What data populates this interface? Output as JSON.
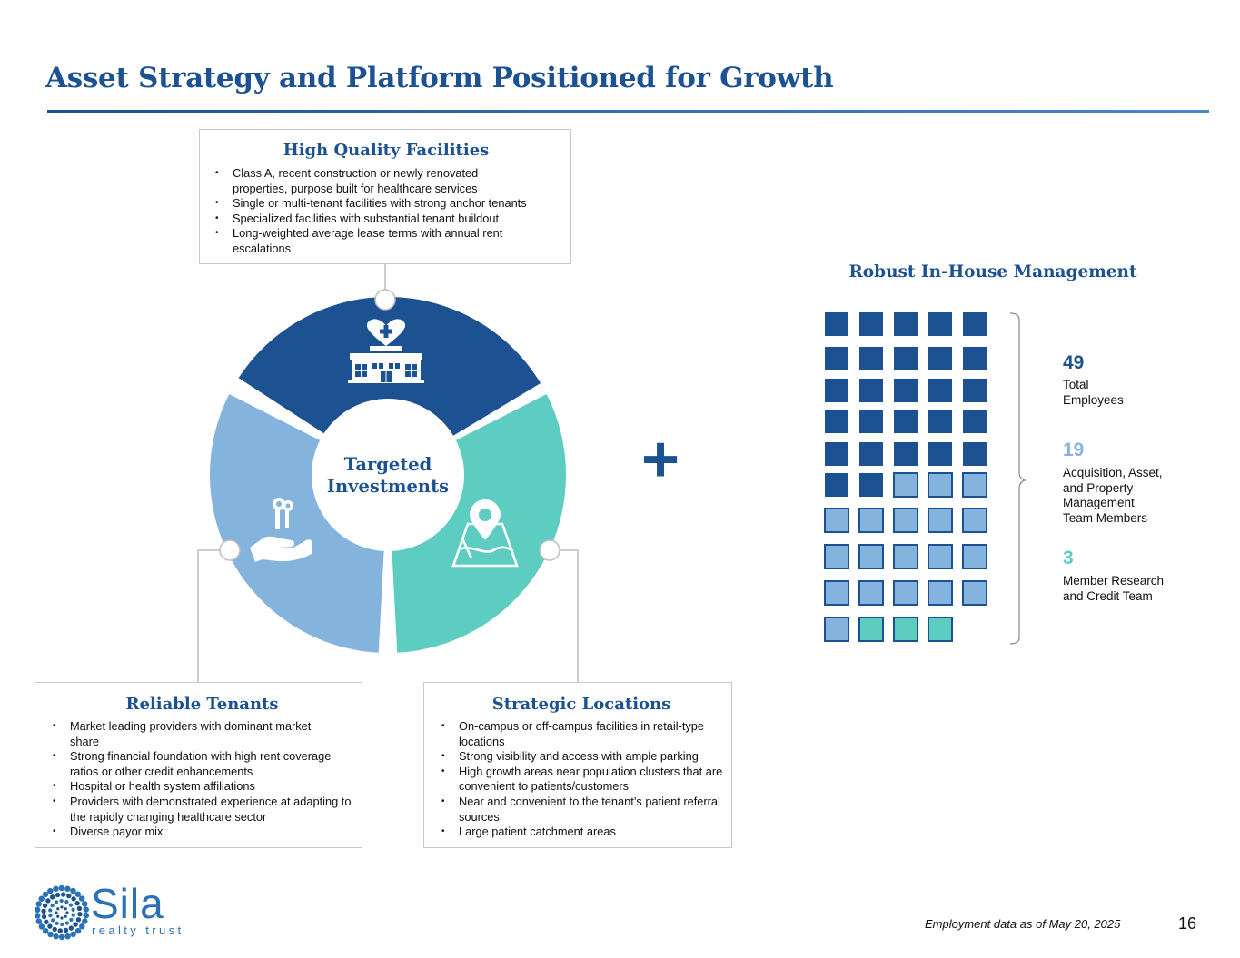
{
  "page": {
    "title": "Asset Strategy and Platform Positioned for Growth",
    "footnote": "Employment data as of May 20, 2025",
    "page_number": "16"
  },
  "logo": {
    "word": "Sila",
    "sub": "realty trust"
  },
  "colors": {
    "navy": "#1d5292",
    "light_blue": "#84b4de",
    "teal": "#5ecdc1",
    "border": "#c8c8c8"
  },
  "wheel": {
    "center_label_line1": "Targeted",
    "center_label_line2": "Investments",
    "segment_icons": [
      "hospital-icon",
      "keys-in-hand-icon",
      "location-map-icon"
    ]
  },
  "high_quality": {
    "title": "High Quality Facilities",
    "bullets": [
      "Class A, recent construction or newly renovated properties, purpose built for healthcare services",
      "Single or multi-tenant facilities with strong anchor tenants",
      "Specialized facilities with substantial tenant buildout",
      "Long-weighted average lease terms with annual rent escalations"
    ]
  },
  "reliable_tenants": {
    "title": "Reliable Tenants",
    "bullets": [
      "Market leading providers with dominant market share",
      "Strong financial foundation with high rent coverage ratios or other credit enhancements",
      "Hospital or health system affiliations",
      "Providers with demonstrated experience at adapting to the rapidly changing healthcare sector",
      "Diverse payor mix"
    ]
  },
  "strategic_locations": {
    "title": "Strategic Locations",
    "bullets": [
      "On-campus or off-campus facilities in retail-type locations",
      "Strong visibility and access with ample parking",
      "High growth areas near population clusters that are convenient to patients/customers",
      "Near and convenient to the tenant’s patient referral sources",
      "Large patient catchment areas"
    ]
  },
  "plus_sign": "+",
  "management": {
    "title": "Robust In-House Management",
    "stats": [
      {
        "number": "49",
        "label_lines": [
          "Total",
          "Employees"
        ],
        "count": 27,
        "color": "#1d5292"
      },
      {
        "number": "19",
        "label_lines": [
          "Acquisition, Asset,",
          "and Property",
          "Management",
          "Team Members"
        ],
        "count": 19,
        "color": "#84b4de"
      },
      {
        "number": "3",
        "label_lines": [
          "Member Research",
          "and Credit Team"
        ],
        "count": 3,
        "color": "#5ecdc1"
      }
    ]
  }
}
